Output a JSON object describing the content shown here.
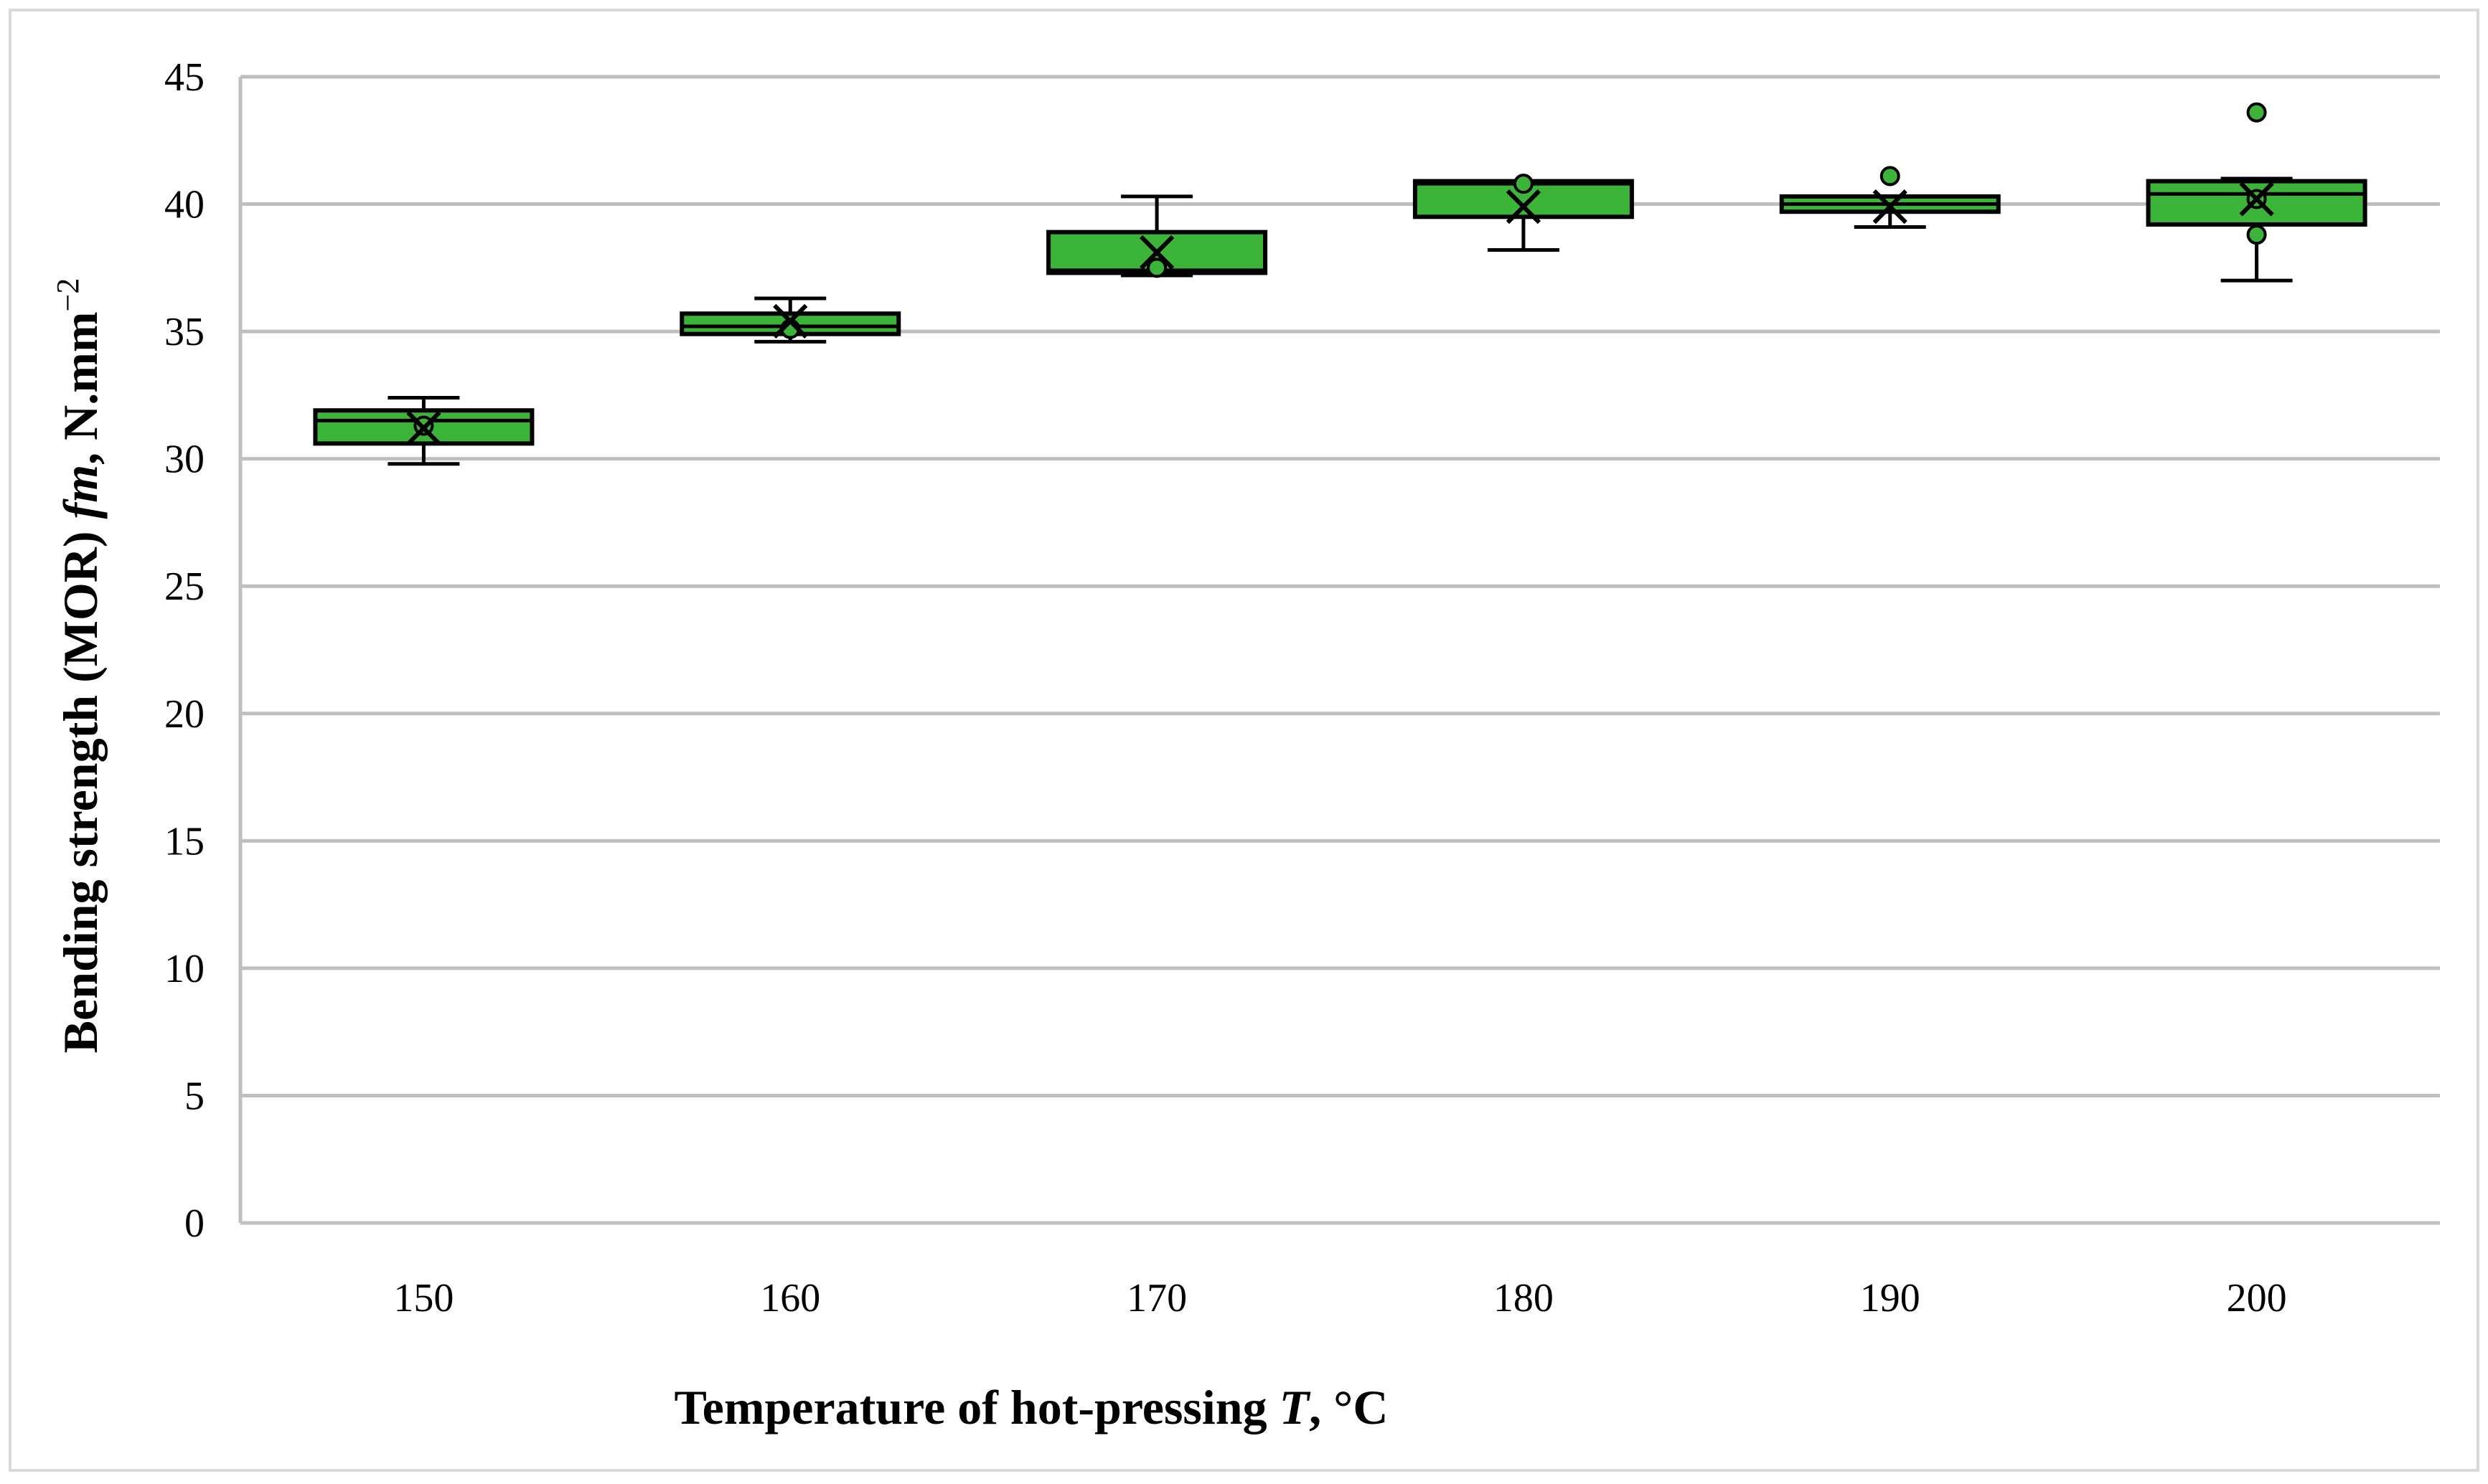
{
  "chart_data": {
    "type": "box",
    "title": "",
    "xlabel": {
      "main": "Temperature of hot-pressing ",
      "variable": "T",
      "unit": ", °C"
    },
    "ylabel": {
      "main": "Bending strength (MOR) ",
      "variable": "fm",
      "unit": ", N.mm",
      "unit_exponent": "−2"
    },
    "ylim": [
      0,
      45
    ],
    "yticks": [
      0,
      5,
      10,
      15,
      20,
      25,
      30,
      35,
      40,
      45
    ],
    "grid": true,
    "categories": [
      "150",
      "160",
      "170",
      "180",
      "190",
      "200"
    ],
    "fill_color": "#3cb339",
    "stroke_color": "#000000",
    "grid_color": "#bfbfbf",
    "boxes": [
      {
        "category": "150",
        "min": 29.8,
        "q1": 30.6,
        "median": 31.5,
        "q3": 31.9,
        "max": 32.4,
        "mean": 31.2,
        "outliers": [],
        "inner_points": [
          31.3
        ]
      },
      {
        "category": "160",
        "min": 34.6,
        "q1": 34.9,
        "median": 35.2,
        "q3": 35.7,
        "max": 36.3,
        "mean": 35.4,
        "outliers": [],
        "inner_points": [
          35.1
        ]
      },
      {
        "category": "170",
        "min": 37.2,
        "q1": 37.3,
        "median": 37.4,
        "q3": 38.9,
        "max": 40.3,
        "mean": 38.1,
        "outliers": [],
        "inner_points": [
          37.5
        ]
      },
      {
        "category": "180",
        "min": 38.2,
        "q1": 39.5,
        "median": 40.8,
        "q3": 40.9,
        "max": 40.9,
        "mean": 39.9,
        "outliers": [],
        "inner_points": [
          40.8
        ]
      },
      {
        "category": "190",
        "min": 39.1,
        "q1": 39.7,
        "median": 40.0,
        "q3": 40.3,
        "max": 40.3,
        "mean": 39.9,
        "outliers": [
          41.1
        ],
        "inner_points": []
      },
      {
        "category": "200",
        "min": 37.0,
        "q1": 39.2,
        "median": 40.4,
        "q3": 40.9,
        "max": 41.0,
        "mean": 40.2,
        "outliers": [
          43.6,
          38.8
        ],
        "inner_points": [
          40.2
        ]
      }
    ]
  }
}
